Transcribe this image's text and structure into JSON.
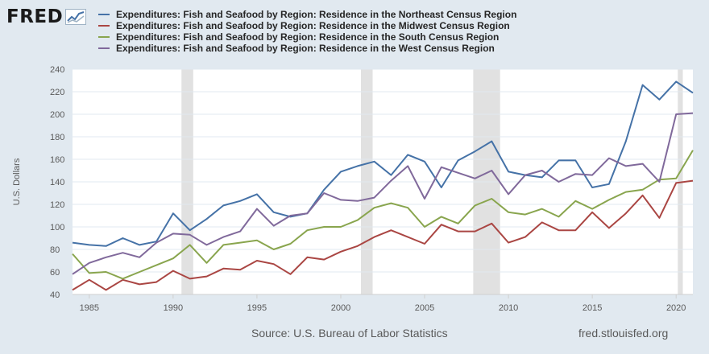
{
  "logo": {
    "text": "FRED",
    "icon": "fred-chart-icon"
  },
  "footer": {
    "source": "Source: U.S. Bureau of Labor Statistics",
    "site": "fred.stlouisfed.org"
  },
  "chart_data": {
    "type": "line",
    "title": "",
    "xlabel": "",
    "ylabel": "U.S. Dollars",
    "xlim": [
      1984,
      2021
    ],
    "ylim": [
      40,
      240
    ],
    "y_ticks": [
      40,
      60,
      80,
      100,
      120,
      140,
      160,
      180,
      200,
      220,
      240
    ],
    "x_ticks": [
      1985,
      1990,
      1995,
      2000,
      2005,
      2010,
      2015,
      2020
    ],
    "grid": "horizontal",
    "legend_position": "top",
    "recessions": [
      [
        1990.5,
        1991.2
      ],
      [
        2001.2,
        2001.9
      ],
      [
        2007.9,
        2009.5
      ],
      [
        2020.1,
        2020.4
      ]
    ],
    "x": [
      1984,
      1985,
      1986,
      1987,
      1988,
      1989,
      1990,
      1991,
      1992,
      1993,
      1994,
      1995,
      1996,
      1997,
      1998,
      1999,
      2000,
      2001,
      2002,
      2003,
      2004,
      2005,
      2006,
      2007,
      2008,
      2009,
      2010,
      2011,
      2012,
      2013,
      2014,
      2015,
      2016,
      2017,
      2018,
      2019,
      2020,
      2021
    ],
    "series": [
      {
        "name": "Expenditures: Fish and Seafood by Region: Residence in the Northeast Census Region",
        "color": "#4572a7",
        "values": [
          86,
          84,
          83,
          90,
          84,
          87,
          112,
          97,
          107,
          119,
          123,
          129,
          113,
          109,
          112,
          133,
          149,
          154,
          158,
          146,
          164,
          158,
          135,
          159,
          167,
          176,
          149,
          146,
          144,
          159,
          159,
          135,
          138,
          176,
          226,
          213,
          229,
          219
        ]
      },
      {
        "name": "Expenditures: Fish and Seafood by Region: Residence in the Midwest Census Region",
        "color": "#aa4643",
        "values": [
          44,
          53,
          44,
          53,
          49,
          51,
          61,
          54,
          56,
          63,
          62,
          70,
          67,
          58,
          73,
          71,
          78,
          83,
          91,
          97,
          91,
          85,
          102,
          96,
          96,
          103,
          86,
          91,
          104,
          97,
          97,
          113,
          99,
          112,
          128,
          108,
          139,
          141
        ]
      },
      {
        "name": "Expenditures: Fish and Seafood by Region: Residence in the South Census Region",
        "color": "#89a54e",
        "values": [
          76,
          59,
          60,
          54,
          60,
          66,
          72,
          84,
          68,
          84,
          86,
          88,
          80,
          85,
          97,
          100,
          100,
          106,
          117,
          121,
          117,
          100,
          109,
          103,
          119,
          125,
          113,
          111,
          116,
          109,
          123,
          116,
          124,
          131,
          133,
          142,
          143,
          168
        ]
      },
      {
        "name": "Expenditures: Fish and Seafood by Region: Residence in the West Census Region",
        "color": "#80699b",
        "values": [
          58,
          68,
          73,
          77,
          73,
          86,
          94,
          93,
          84,
          91,
          96,
          116,
          101,
          110,
          112,
          130,
          124,
          123,
          126,
          141,
          154,
          125,
          153,
          148,
          143,
          150,
          129,
          146,
          150,
          140,
          147,
          146,
          161,
          154,
          156,
          140,
          200,
          201
        ]
      }
    ]
  }
}
